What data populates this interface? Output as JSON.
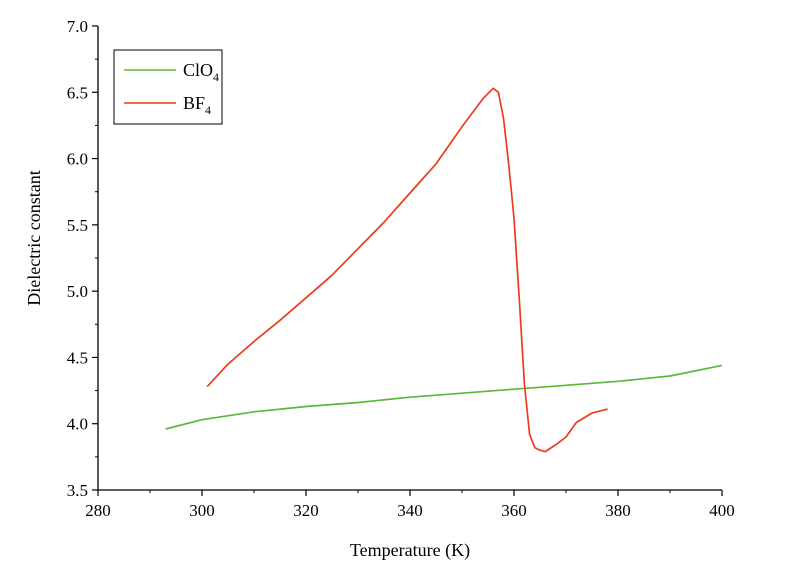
{
  "chart_data": {
    "type": "line",
    "title": "",
    "xlabel": "Temperature (K)",
    "ylabel": "Dielectric constant",
    "xlim": [
      280,
      400
    ],
    "ylim": [
      3.5,
      7.0
    ],
    "xticks": [
      280,
      300,
      320,
      340,
      360,
      380,
      400
    ],
    "yticks": [
      3.5,
      4.0,
      4.5,
      5.0,
      5.5,
      6.0,
      6.5,
      7.0
    ],
    "xtick_labels": [
      "280",
      "300",
      "320",
      "340",
      "360",
      "380",
      "400"
    ],
    "ytick_labels": [
      "3.5",
      "4.0",
      "4.5",
      "5.0",
      "5.5",
      "6.0",
      "6.5",
      "7.0"
    ],
    "grid": false,
    "legend_position": "top-left",
    "series": [
      {
        "name": "ClO4",
        "label_main": "ClO",
        "label_sub": "4",
        "color": "#5cb83a",
        "x": [
          293,
          300,
          310,
          320,
          330,
          340,
          350,
          360,
          370,
          380,
          390,
          400
        ],
        "y": [
          3.96,
          4.03,
          4.09,
          4.13,
          4.16,
          4.2,
          4.23,
          4.26,
          4.29,
          4.32,
          4.36,
          4.44
        ]
      },
      {
        "name": "BF4",
        "label_main": "BF",
        "label_sub": "4",
        "color": "#ee3b1c",
        "x": [
          301,
          305,
          310,
          315,
          320,
          325,
          330,
          335,
          340,
          345,
          350,
          354,
          356,
          357,
          358,
          359,
          360,
          361,
          362,
          363,
          364,
          365,
          366,
          368,
          370,
          372,
          375,
          378
        ],
        "y": [
          4.28,
          4.45,
          4.62,
          4.78,
          4.95,
          5.12,
          5.32,
          5.52,
          5.74,
          5.96,
          6.24,
          6.45,
          6.53,
          6.5,
          6.3,
          5.95,
          5.55,
          4.95,
          4.3,
          3.92,
          3.82,
          3.8,
          3.79,
          3.84,
          3.9,
          4.01,
          4.08,
          4.11
        ]
      }
    ]
  }
}
